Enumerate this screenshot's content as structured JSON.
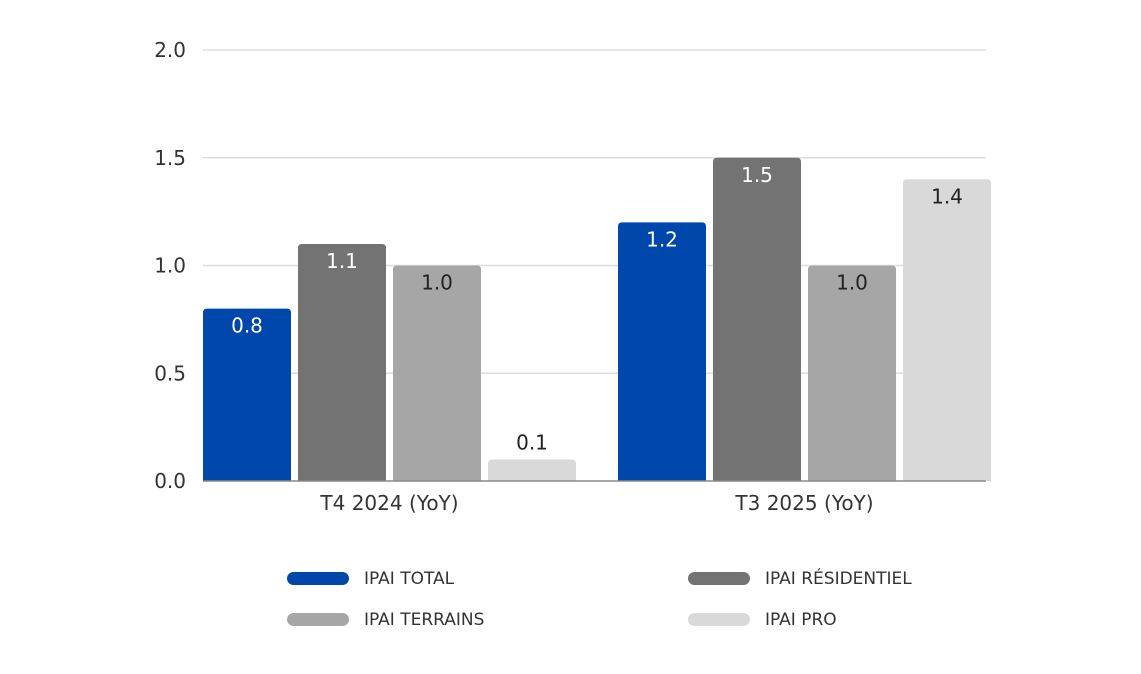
{
  "chart_data": {
    "type": "bar",
    "categories": [
      "T4 2024 (YoY)",
      "T3 2025 (YoY)"
    ],
    "series": [
      {
        "name": "IPAI TOTAL",
        "values": [
          0.8,
          1.2
        ],
        "labels": [
          "0.8",
          "1.2"
        ],
        "color": "#0047AB",
        "label_color": "#ffffff"
      },
      {
        "name": "IPAI RÉSIDENTIEL",
        "values": [
          1.1,
          1.5
        ],
        "labels": [
          "1.1",
          "1.5"
        ],
        "color": "#737373",
        "label_color": "#ffffff"
      },
      {
        "name": "IPAI TERRAINS",
        "values": [
          1.0,
          1.0
        ],
        "labels": [
          "1.0",
          "1.0"
        ],
        "color": "#A6A6A6",
        "label_color": "#222222"
      },
      {
        "name": "IPAI PRO",
        "values": [
          0.1,
          1.4
        ],
        "labels": [
          "0.1",
          "1.4"
        ],
        "color": "#D9D9D9",
        "label_color": "#222222"
      }
    ],
    "yticks": [
      "0.0",
      "0.5",
      "1.0",
      "1.5",
      "2.0"
    ],
    "ylim": [
      0,
      2.0
    ],
    "grid": true,
    "legend_position": "bottom",
    "title": "",
    "xlabel": "",
    "ylabel": ""
  }
}
